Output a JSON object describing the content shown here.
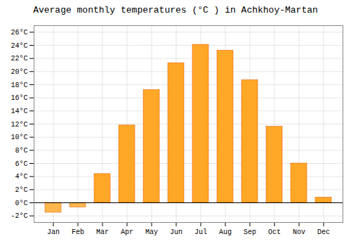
{
  "chart_data": {
    "type": "bar",
    "title": "Average monthly temperatures (°C ) in Achkhoy-Martan",
    "categories": [
      "Jan",
      "Feb",
      "Mar",
      "Apr",
      "May",
      "Jun",
      "Jul",
      "Aug",
      "Sep",
      "Oct",
      "Nov",
      "Dec"
    ],
    "values": [
      -1.5,
      -0.7,
      4.4,
      11.8,
      17.2,
      21.3,
      24.1,
      23.2,
      18.7,
      11.6,
      6.0,
      0.8
    ],
    "colors": [
      "#FFB74D",
      "#FFB74D",
      "#FFA726",
      "#FFA726",
      "#FFA726",
      "#FFA726",
      "#FFA726",
      "#FFA726",
      "#FFA726",
      "#FFA726",
      "#FFA726",
      "#FFA726"
    ],
    "ylim": [
      -3,
      27
    ],
    "yticks": [
      {
        "value": -2,
        "label": "-2°C"
      },
      {
        "value": 0,
        "label": "0°C"
      },
      {
        "value": 2,
        "label": "2°C"
      },
      {
        "value": 4,
        "label": "4°C"
      },
      {
        "value": 6,
        "label": "6°C"
      },
      {
        "value": 8,
        "label": "8°C"
      },
      {
        "value": 10,
        "label": "10°C"
      },
      {
        "value": 12,
        "label": "12°C"
      },
      {
        "value": 14,
        "label": "14°C"
      },
      {
        "value": 16,
        "label": "16°C"
      },
      {
        "value": 18,
        "label": "18°C"
      },
      {
        "value": 20,
        "label": "20°C"
      },
      {
        "value": 22,
        "label": "22°C"
      },
      {
        "value": 24,
        "label": "24°C"
      },
      {
        "value": 26,
        "label": "26°C"
      }
    ],
    "grid": true
  }
}
